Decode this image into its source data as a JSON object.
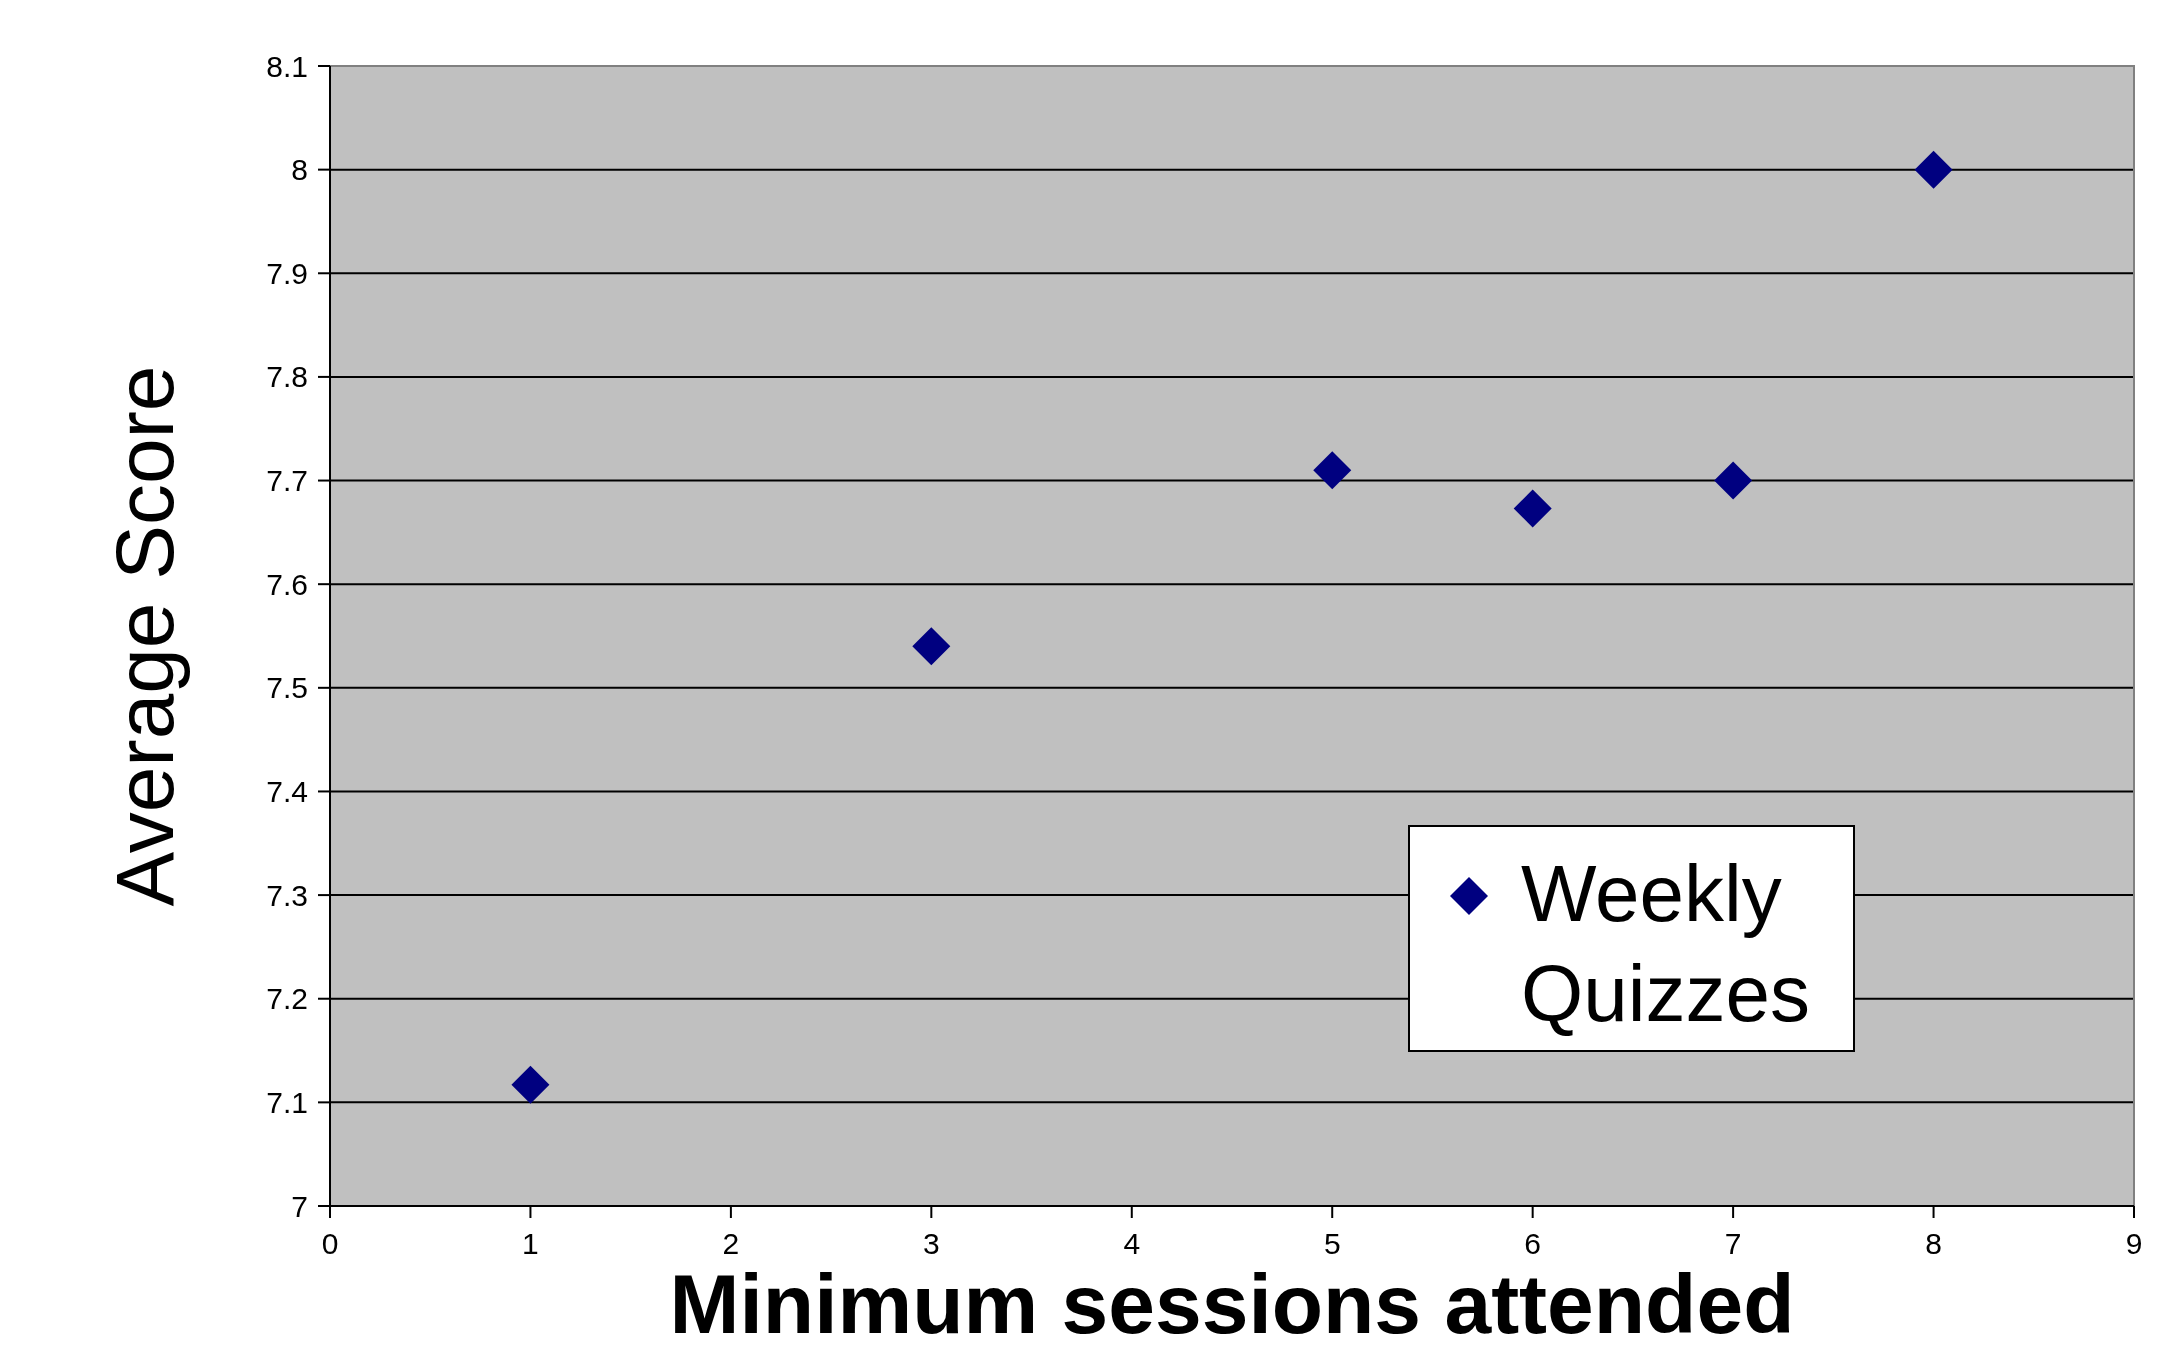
{
  "chart_data": {
    "type": "scatter",
    "xlabel": "Minimum sessions attended",
    "ylabel": "Average Score",
    "x": [
      1,
      3,
      5,
      6,
      7,
      8
    ],
    "series": [
      {
        "name": "Weekly Quizzes",
        "color": "#000080",
        "values": [
          7.117,
          7.54,
          7.71,
          7.673,
          7.7,
          8.0
        ]
      }
    ],
    "xlim": [
      0,
      9
    ],
    "xticks": [
      0,
      1,
      2,
      3,
      4,
      5,
      6,
      7,
      8,
      9
    ],
    "ylim": [
      7,
      8.1
    ],
    "yticks": [
      7,
      {
        "value": 7.1,
        "label": "7.1"
      },
      {
        "value": 7.2,
        "label": "7.2"
      },
      {
        "value": 7.3,
        "label": "7.3"
      },
      {
        "value": 7.4,
        "label": "7.4"
      },
      {
        "value": 7.5,
        "label": "7.5"
      },
      {
        "value": 7.6,
        "label": "7.6"
      },
      {
        "value": 7.7,
        "label": "7.7"
      },
      {
        "value": 7.8,
        "label": "7.8"
      },
      {
        "value": 7.9,
        "label": "7.9"
      },
      8,
      {
        "value": 8.1,
        "label": "8.1"
      }
    ],
    "grid": "y",
    "legend": "bottom right",
    "marker": "diamond"
  }
}
